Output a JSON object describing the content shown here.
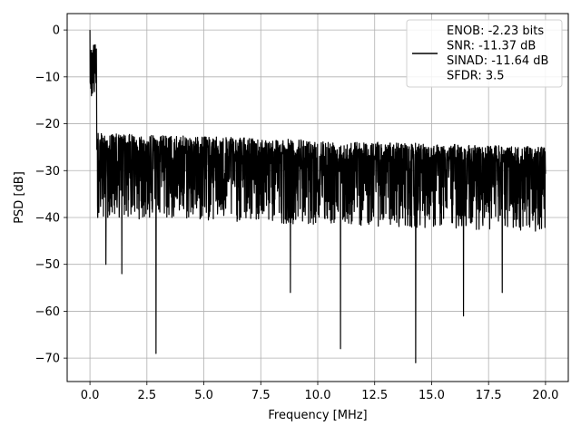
{
  "chart_data": {
    "type": "line",
    "title": "",
    "xlabel": "Frequency [MHz]",
    "ylabel": "PSD [dB]",
    "xlim": [
      -1.0,
      21.0
    ],
    "ylim": [
      -75,
      3.5
    ],
    "xticks": [
      0.0,
      2.5,
      5.0,
      7.5,
      10.0,
      12.5,
      15.0,
      17.5,
      20.0
    ],
    "xtick_labels": [
      "0.0",
      "2.5",
      "5.0",
      "7.5",
      "10.0",
      "12.5",
      "15.0",
      "17.5",
      "20.0"
    ],
    "yticks": [
      0,
      -10,
      -20,
      -30,
      -40,
      -50,
      -60,
      -70
    ],
    "ytick_labels": [
      "0",
      "−10",
      "−20",
      "−30",
      "−40",
      "−50",
      "−60",
      "−70"
    ],
    "grid": true,
    "legend_position": "top-right",
    "series": [
      {
        "name": "ENOB: -2.23 bits\nSNR: -11.37 dB\nSINAD: -11.64 dB\nSFDR: 3.5",
        "color": "#000000",
        "description_values": {
          "x_range": [
            0.0,
            20.0
          ],
          "peak": {
            "x": 0.0,
            "y": 0
          },
          "noise_floor_mean": -28,
          "noise_upper_envelope": -22,
          "noise_lower_envelope": -40,
          "notable_dips": [
            {
              "x": 2.9,
              "y": -69
            },
            {
              "x": 11.0,
              "y": -68
            },
            {
              "x": 14.3,
              "y": -71
            },
            {
              "x": 16.4,
              "y": -61
            },
            {
              "x": 8.8,
              "y": -56
            },
            {
              "x": 1.4,
              "y": -52
            },
            {
              "x": 0.7,
              "y": -50
            },
            {
              "x": 18.1,
              "y": -56
            }
          ]
        }
      }
    ],
    "legend_lines": [
      "ENOB: -2.23 bits",
      "SNR: -11.37 dB",
      "SINAD: -11.64 dB",
      "SFDR: 3.5"
    ]
  }
}
